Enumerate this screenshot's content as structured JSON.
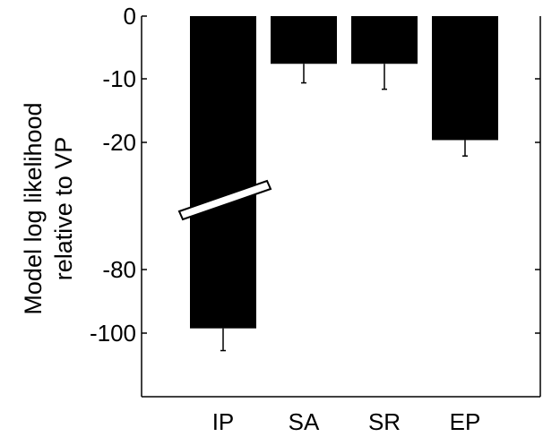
{
  "chart_data": {
    "type": "bar",
    "title": "",
    "xlabel": "",
    "ylabel_lines": [
      "Model log likelihood",
      "relative to VP"
    ],
    "categories": [
      "IP",
      "SA",
      "SR",
      "EP"
    ],
    "values": [
      -98.5,
      -7.5,
      -7.5,
      -19.5
    ],
    "error_bars": [
      7,
      3,
      4,
      2.5
    ],
    "yticks": [
      "0",
      "-10",
      "-20",
      "-80",
      "-100"
    ],
    "ylim_upper_segment": [
      -26,
      0
    ],
    "ylim_lower_segment": [
      -110,
      -73
    ],
    "axis_break": true,
    "bar_color": "#000000",
    "grid": false,
    "legend": "none"
  }
}
